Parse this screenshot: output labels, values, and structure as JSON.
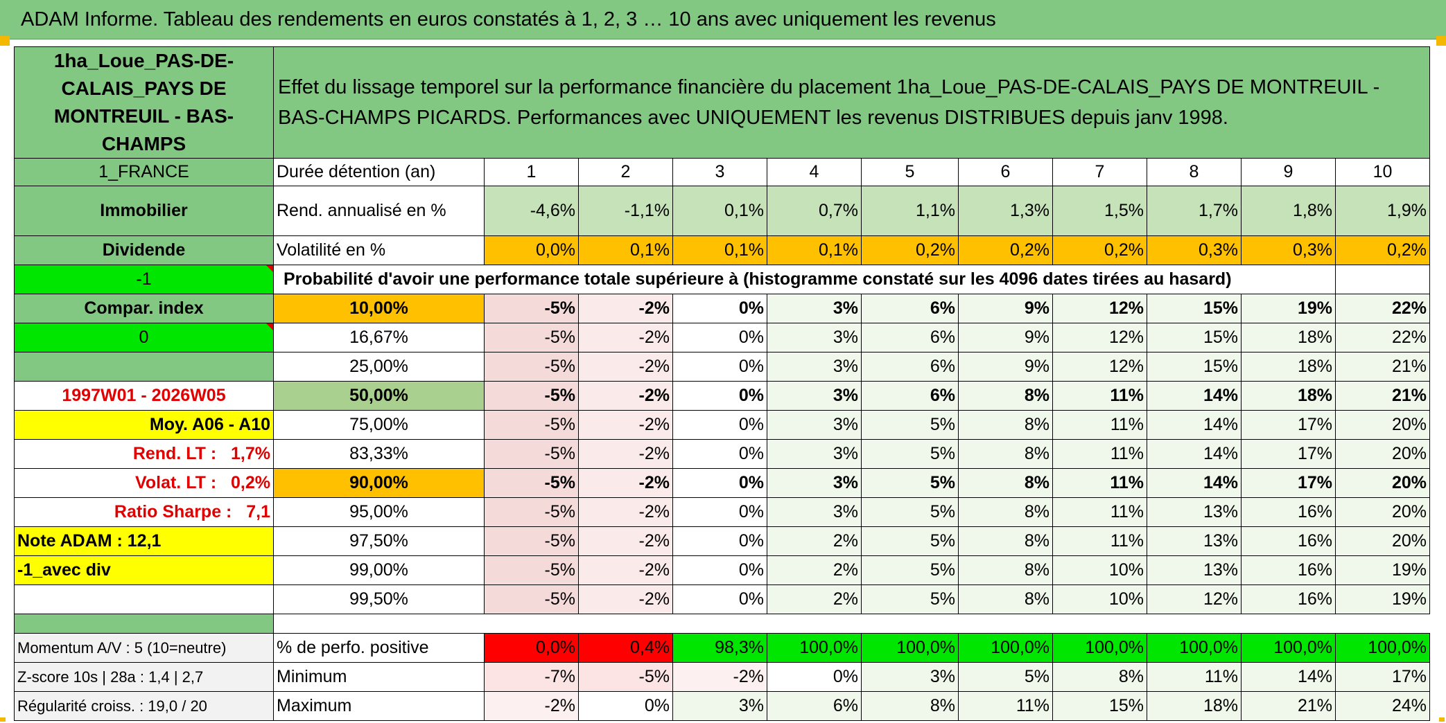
{
  "banner": {
    "title": "ADAM Informe. Tableau des rendements en euros constatés à 1, 2, 3 … 10 ans avec uniquement les revenus"
  },
  "left": {
    "asset_name": "1ha_Loue_PAS-DE-CALAIS_PAYS DE MONTREUIL - BAS-CHAMPS",
    "country": "1_FRANCE",
    "category": "Immobilier",
    "type": "Dividende",
    "flag_value": "-1",
    "compar_label": "Compar. index",
    "compar_value": "0",
    "period": "1997W01 - 2026W05",
    "moy_label": "Moy. A06 - A10",
    "rend_lt_label": "Rend. LT :",
    "rend_lt_value": "1,7%",
    "volat_lt_label": "Volat. LT :",
    "volat_lt_value": "0,2%",
    "sharpe_label": "Ratio Sharpe :",
    "sharpe_value": "7,1",
    "note_adam": "Note ADAM : 12,1",
    "avec_div": "-1_avec div",
    "momentum": "Momentum A/V : 5 (10=neutre)",
    "zscore": "Z-score 10s | 28a : 1,4 | 2,7",
    "regularite": "Régularité croiss. : 19,0 / 20"
  },
  "header": {
    "description": "Effet du lissage temporel sur la performance financière du placement 1ha_Loue_PAS-DE-CALAIS_PAYS DE MONTREUIL - BAS-CHAMPS PICARDS. Performances avec UNIQUEMENT les revenus DISTRIBUES depuis janv 1998."
  },
  "table": {
    "duree_label": "Durée détention (an)",
    "years": [
      "1",
      "2",
      "3",
      "4",
      "5",
      "6",
      "7",
      "8",
      "9",
      "10"
    ],
    "rend_label": "Rend. annualisé en %",
    "rend_values": [
      "-4,6%",
      "-1,1%",
      "0,1%",
      "0,7%",
      "1,1%",
      "1,3%",
      "1,5%",
      "1,7%",
      "1,8%",
      "1,9%"
    ],
    "vol_label": "Volatilité en %",
    "vol_values": [
      "0,0%",
      "0,1%",
      "0,1%",
      "0,1%",
      "0,2%",
      "0,2%",
      "0,2%",
      "0,3%",
      "0,3%",
      "0,2%"
    ],
    "proba_label": "Probabilité d'avoir une performance totale supérieure à (histogramme constaté sur les 4096 dates tirées au hasard)",
    "percentile_rows": [
      {
        "label": "10,00%",
        "values": [
          "-5%",
          "-2%",
          "0%",
          "3%",
          "6%",
          "9%",
          "12%",
          "15%",
          "19%",
          "22%"
        ]
      },
      {
        "label": "16,67%",
        "values": [
          "-5%",
          "-2%",
          "0%",
          "3%",
          "6%",
          "9%",
          "12%",
          "15%",
          "18%",
          "22%"
        ]
      },
      {
        "label": "25,00%",
        "values": [
          "-5%",
          "-2%",
          "0%",
          "3%",
          "6%",
          "9%",
          "12%",
          "15%",
          "18%",
          "21%"
        ]
      },
      {
        "label": "50,00%",
        "values": [
          "-5%",
          "-2%",
          "0%",
          "3%",
          "6%",
          "8%",
          "11%",
          "14%",
          "18%",
          "21%"
        ]
      },
      {
        "label": "75,00%",
        "values": [
          "-5%",
          "-2%",
          "0%",
          "3%",
          "5%",
          "8%",
          "11%",
          "14%",
          "17%",
          "20%"
        ]
      },
      {
        "label": "83,33%",
        "values": [
          "-5%",
          "-2%",
          "0%",
          "3%",
          "5%",
          "8%",
          "11%",
          "14%",
          "17%",
          "20%"
        ]
      },
      {
        "label": "90,00%",
        "values": [
          "-5%",
          "-2%",
          "0%",
          "3%",
          "5%",
          "8%",
          "11%",
          "14%",
          "17%",
          "20%"
        ]
      },
      {
        "label": "95,00%",
        "values": [
          "-5%",
          "-2%",
          "0%",
          "3%",
          "5%",
          "8%",
          "11%",
          "13%",
          "16%",
          "20%"
        ]
      },
      {
        "label": "97,50%",
        "values": [
          "-5%",
          "-2%",
          "0%",
          "2%",
          "5%",
          "8%",
          "11%",
          "13%",
          "16%",
          "20%"
        ]
      },
      {
        "label": "99,00%",
        "values": [
          "-5%",
          "-2%",
          "0%",
          "2%",
          "5%",
          "8%",
          "10%",
          "13%",
          "16%",
          "19%"
        ]
      },
      {
        "label": "99,50%",
        "values": [
          "-5%",
          "-2%",
          "0%",
          "2%",
          "5%",
          "8%",
          "10%",
          "12%",
          "16%",
          "19%"
        ]
      }
    ],
    "pos_label": "% de perfo. positive",
    "pos_values": [
      "0,0%",
      "0,4%",
      "98,3%",
      "100,0%",
      "100,0%",
      "100,0%",
      "100,0%",
      "100,0%",
      "100,0%",
      "100,0%"
    ],
    "min_label": "Minimum",
    "min_values": [
      "-7%",
      "-5%",
      "-2%",
      "0%",
      "3%",
      "5%",
      "8%",
      "11%",
      "14%",
      "17%"
    ],
    "max_label": "Maximum",
    "max_values": [
      "-2%",
      "0%",
      "3%",
      "6%",
      "8%",
      "11%",
      "15%",
      "18%",
      "21%",
      "24%"
    ]
  },
  "colors": {
    "header_green": "#82c882",
    "light_green": "#c5e2b8",
    "bright_green": "#00e600",
    "orange": "#ffc000",
    "yellow": "#ffff00",
    "red": "#ff0000",
    "red_text": "#e00000"
  }
}
